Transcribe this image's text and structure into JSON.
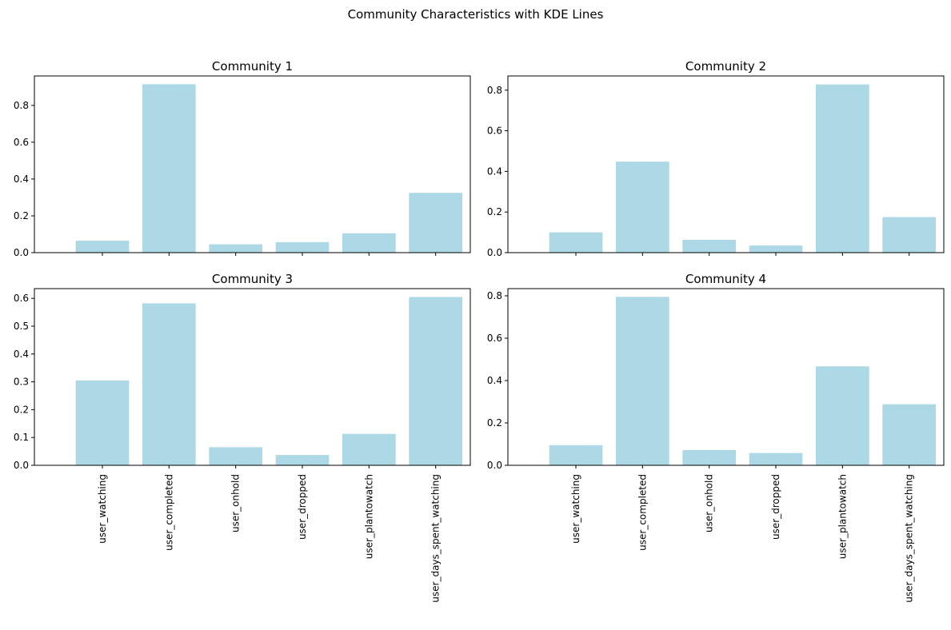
{
  "figure": {
    "suptitle": "Community Characteristics with KDE Lines",
    "bar_color": "#add8e6"
  },
  "chart_data": [
    {
      "type": "bar",
      "title": "Community 1",
      "categories": [
        "user_watching",
        "user_completed",
        "user_onhold",
        "user_dropped",
        "user_plantowatch",
        "user_days_spent_watching"
      ],
      "values": [
        0.065,
        0.915,
        0.045,
        0.057,
        0.105,
        0.325
      ],
      "ylim": [
        0,
        0.96
      ],
      "yticks": [
        0.0,
        0.2,
        0.4,
        0.6,
        0.8
      ],
      "ytick_labels": [
        "0.0",
        "0.2",
        "0.4",
        "0.6",
        "0.8"
      ],
      "xlabel": "",
      "ylabel": "",
      "grid": false
    },
    {
      "type": "bar",
      "title": "Community 2",
      "categories": [
        "user_watching",
        "user_completed",
        "user_onhold",
        "user_dropped",
        "user_plantowatch",
        "user_days_spent_watching"
      ],
      "values": [
        0.1,
        0.448,
        0.063,
        0.035,
        0.828,
        0.175
      ],
      "ylim": [
        0,
        0.87
      ],
      "yticks": [
        0.0,
        0.2,
        0.4,
        0.6,
        0.8
      ],
      "ytick_labels": [
        "0.0",
        "0.2",
        "0.4",
        "0.6",
        "0.8"
      ],
      "xlabel": "",
      "ylabel": "",
      "grid": false
    },
    {
      "type": "bar",
      "title": "Community 3",
      "categories": [
        "user_watching",
        "user_completed",
        "user_onhold",
        "user_dropped",
        "user_plantowatch",
        "user_days_spent_watching"
      ],
      "values": [
        0.305,
        0.582,
        0.065,
        0.037,
        0.113,
        0.605
      ],
      "ylim": [
        0,
        0.635
      ],
      "yticks": [
        0.0,
        0.1,
        0.2,
        0.3,
        0.4,
        0.5,
        0.6
      ],
      "ytick_labels": [
        "0.0",
        "0.1",
        "0.2",
        "0.3",
        "0.4",
        "0.5",
        "0.6"
      ],
      "xlabel": "",
      "ylabel": "",
      "grid": false
    },
    {
      "type": "bar",
      "title": "Community 4",
      "categories": [
        "user_watching",
        "user_completed",
        "user_onhold",
        "user_dropped",
        "user_plantowatch",
        "user_days_spent_watching"
      ],
      "values": [
        0.095,
        0.795,
        0.072,
        0.058,
        0.467,
        0.288
      ],
      "ylim": [
        0,
        0.834
      ],
      "yticks": [
        0.0,
        0.2,
        0.4,
        0.6,
        0.8
      ],
      "ytick_labels": [
        "0.0",
        "0.2",
        "0.4",
        "0.6",
        "0.8"
      ],
      "xlabel": "",
      "ylabel": "",
      "grid": false
    }
  ]
}
